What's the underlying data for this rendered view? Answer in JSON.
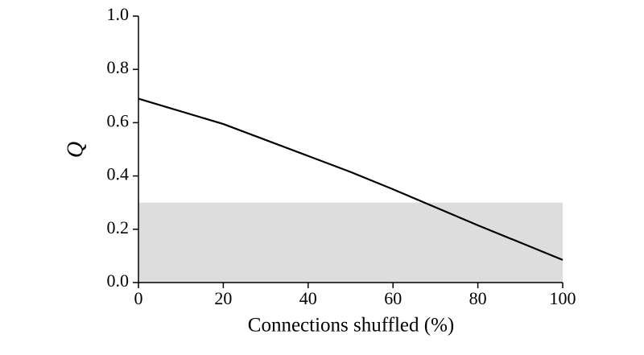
{
  "chart_data": {
    "type": "line",
    "x_label": "Connections shuffled (%)",
    "y_label": "Q",
    "x": [
      0,
      20,
      40,
      50,
      60,
      80,
      100
    ],
    "series": [
      {
        "color": "#000000",
        "values": [
          0.69,
          0.595,
          0.475,
          0.415,
          0.35,
          0.215,
          0.085
        ]
      }
    ],
    "shaded_band": {
      "range": [
        0,
        0.3
      ],
      "color": "#dddddd"
    },
    "xlim": [
      0,
      100
    ],
    "ylim": [
      0,
      1
    ],
    "xticks": [
      0,
      20,
      40,
      60,
      80,
      100
    ],
    "yticks": [
      {
        "value": 0,
        "label": "0.0"
      },
      {
        "value": 0.2,
        "label": "0.2"
      },
      {
        "value": 0.4,
        "label": "0.4"
      },
      {
        "value": 0.6,
        "label": "0.6"
      },
      {
        "value": 0.8,
        "label": "0.8"
      },
      {
        "value": 1,
        "label": "1.0"
      }
    ]
  }
}
